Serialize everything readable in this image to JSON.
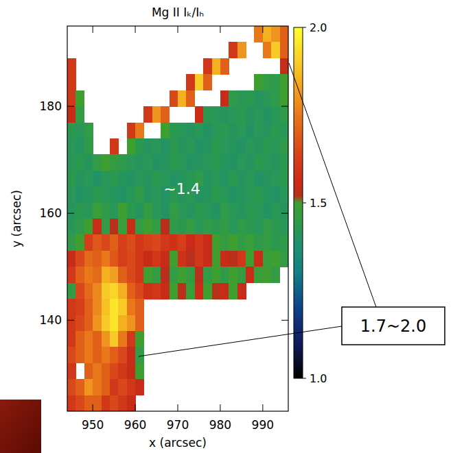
{
  "chart_data": {
    "type": "heatmap",
    "title": "Mg II Iₖ/Iₕ",
    "xlabel": "x (arcsec)",
    "ylabel": "y (arcsec)",
    "xlim": [
      944,
      996
    ],
    "ylim": [
      123,
      195
    ],
    "xticks": [
      950,
      960,
      970,
      980,
      990
    ],
    "yticks": [
      140,
      160,
      180
    ],
    "xbins": [
      944,
      946,
      948,
      950,
      952,
      954,
      956,
      958,
      960,
      962,
      964,
      966,
      968,
      970,
      972,
      974,
      976,
      978,
      980,
      982,
      984,
      986,
      988,
      990,
      992,
      994,
      996
    ],
    "ybins": [
      195,
      192,
      189,
      186,
      183,
      180,
      177,
      174,
      171,
      168,
      165,
      162,
      159,
      156,
      153,
      150,
      147,
      144,
      141,
      138,
      135,
      132,
      129,
      126,
      123
    ],
    "values": [
      [
        null,
        null,
        null,
        null,
        null,
        null,
        null,
        null,
        null,
        null,
        null,
        null,
        null,
        null,
        null,
        null,
        null,
        null,
        null,
        null,
        null,
        null,
        1.75,
        1.85,
        1.8,
        1.7
      ],
      [
        null,
        null,
        null,
        null,
        null,
        null,
        null,
        null,
        null,
        null,
        null,
        null,
        null,
        null,
        null,
        null,
        null,
        null,
        null,
        1.6,
        1.8,
        null,
        null,
        1.75,
        1.9,
        1.7
      ],
      [
        1.6,
        null,
        null,
        null,
        null,
        null,
        null,
        null,
        null,
        null,
        null,
        null,
        null,
        null,
        null,
        null,
        1.6,
        1.85,
        1.7,
        null,
        null,
        null,
        null,
        null,
        null,
        1.55
      ],
      [
        1.6,
        null,
        null,
        null,
        null,
        null,
        null,
        null,
        null,
        null,
        null,
        null,
        null,
        null,
        1.6,
        1.9,
        1.7,
        null,
        null,
        null,
        null,
        null,
        1.5,
        1.45,
        1.44,
        1.5
      ],
      [
        1.6,
        1.5,
        null,
        null,
        null,
        null,
        null,
        null,
        null,
        null,
        null,
        null,
        1.65,
        1.85,
        1.7,
        null,
        null,
        null,
        1.55,
        1.44,
        1.42,
        1.43,
        1.41,
        1.42,
        1.44,
        1.5
      ],
      [
        1.55,
        1.45,
        null,
        null,
        null,
        null,
        null,
        null,
        null,
        1.6,
        1.8,
        1.7,
        null,
        null,
        null,
        1.55,
        1.43,
        1.42,
        1.41,
        1.42,
        1.43,
        1.41,
        1.42,
        1.4,
        1.42,
        1.44
      ],
      [
        1.43,
        1.42,
        1.45,
        null,
        null,
        null,
        null,
        1.6,
        1.75,
        null,
        null,
        1.5,
        1.43,
        1.42,
        1.41,
        1.42,
        1.4,
        1.42,
        1.43,
        1.41,
        1.42,
        1.4,
        1.42,
        1.41,
        1.43,
        1.42
      ],
      [
        1.42,
        1.41,
        1.44,
        null,
        null,
        1.6,
        null,
        1.5,
        1.43,
        1.41,
        1.42,
        1.4,
        1.43,
        1.41,
        1.42,
        1.4,
        1.41,
        1.43,
        1.42,
        1.41,
        1.4,
        1.42,
        1.41,
        1.43,
        1.42,
        1.44
      ],
      [
        1.42,
        1.43,
        1.41,
        1.45,
        1.5,
        1.46,
        1.44,
        1.42,
        1.41,
        1.42,
        1.4,
        1.41,
        1.43,
        1.42,
        1.4,
        1.41,
        1.42,
        1.43,
        1.41,
        1.4,
        1.42,
        1.41,
        1.43,
        1.42,
        1.41,
        1.43
      ],
      [
        1.43,
        1.41,
        1.42,
        1.4,
        1.42,
        1.43,
        1.41,
        1.4,
        1.42,
        1.41,
        1.43,
        1.42,
        1.4,
        1.41,
        1.42,
        1.44,
        1.41,
        1.42,
        1.4,
        1.43,
        1.41,
        1.42,
        1.4,
        1.41,
        1.42,
        1.43
      ],
      [
        1.42,
        1.4,
        1.41,
        1.43,
        1.42,
        1.41,
        1.4,
        1.42,
        1.44,
        1.41,
        1.42,
        1.4,
        1.43,
        1.41,
        1.42,
        1.4,
        1.41,
        1.43,
        1.42,
        1.4,
        1.41,
        1.42,
        1.43,
        1.41,
        1.4,
        1.42
      ],
      [
        1.41,
        1.43,
        1.42,
        1.48,
        1.44,
        1.42,
        1.5,
        1.43,
        1.41,
        1.46,
        1.42,
        1.4,
        1.45,
        1.42,
        1.41,
        1.43,
        1.42,
        1.4,
        1.44,
        1.42,
        1.41,
        1.43,
        1.42,
        1.4,
        1.42,
        1.41
      ],
      [
        1.42,
        1.44,
        1.5,
        1.55,
        1.45,
        1.52,
        1.48,
        1.55,
        1.46,
        1.5,
        1.45,
        1.52,
        1.44,
        1.43,
        1.46,
        1.42,
        1.44,
        1.43,
        1.45,
        1.42,
        1.44,
        1.43,
        1.42,
        1.45,
        1.43,
        1.42
      ],
      [
        1.44,
        1.5,
        1.62,
        1.68,
        1.65,
        1.7,
        1.62,
        1.66,
        1.6,
        1.63,
        1.65,
        1.6,
        1.58,
        1.62,
        1.56,
        1.6,
        1.55,
        1.5,
        1.46,
        1.5,
        1.45,
        1.48,
        1.44,
        1.46,
        1.43,
        1.44
      ],
      [
        1.55,
        1.65,
        1.72,
        1.7,
        1.75,
        1.68,
        1.62,
        1.65,
        1.6,
        1.55,
        1.6,
        1.55,
        1.5,
        1.58,
        1.52,
        1.6,
        1.55,
        1.5,
        1.56,
        1.52,
        1.6,
        1.5,
        1.55,
        1.48,
        1.5,
        1.45
      ],
      [
        1.6,
        1.7,
        1.75,
        1.72,
        1.85,
        1.82,
        1.7,
        1.65,
        1.6,
        1.5,
        1.46,
        1.52,
        1.45,
        1.5,
        1.46,
        1.52,
        1.45,
        1.5,
        1.44,
        1.5,
        1.46,
        1.55,
        1.48,
        1.5,
        1.45,
        null
      ],
      [
        1.45,
        1.65,
        1.72,
        1.78,
        1.9,
        1.92,
        1.85,
        1.7,
        1.65,
        1.58,
        1.6,
        1.55,
        1.5,
        1.52,
        1.48,
        1.55,
        1.5,
        1.52,
        1.55,
        1.5,
        1.55,
        null,
        null,
        null,
        null,
        null
      ],
      [
        1.6,
        1.62,
        1.7,
        1.78,
        1.88,
        1.95,
        1.9,
        1.75,
        1.7,
        null,
        null,
        null,
        null,
        null,
        null,
        null,
        null,
        null,
        null,
        null,
        null,
        null,
        null,
        null,
        null,
        null
      ],
      [
        1.6,
        1.65,
        1.7,
        1.8,
        1.9,
        1.95,
        1.85,
        1.8,
        1.7,
        null,
        null,
        null,
        null,
        null,
        null,
        null,
        null,
        null,
        null,
        null,
        null,
        null,
        null,
        null,
        null,
        null
      ],
      [
        1.6,
        1.7,
        1.75,
        1.7,
        1.8,
        1.9,
        1.75,
        1.6,
        1.5,
        null,
        null,
        null,
        null,
        null,
        null,
        null,
        null,
        null,
        null,
        null,
        null,
        null,
        null,
        null,
        null,
        null
      ],
      [
        1.65,
        1.7,
        1.75,
        1.7,
        1.75,
        1.7,
        1.65,
        1.55,
        1.45,
        null,
        null,
        null,
        null,
        null,
        null,
        null,
        null,
        null,
        null,
        null,
        null,
        null,
        null,
        null,
        null,
        null
      ],
      [
        1.6,
        null,
        1.7,
        1.75,
        1.7,
        1.65,
        1.6,
        1.55,
        1.5,
        null,
        null,
        null,
        null,
        null,
        null,
        null,
        null,
        null,
        null,
        null,
        null,
        null,
        null,
        null,
        null,
        null
      ],
      [
        1.65,
        1.7,
        1.8,
        1.75,
        1.7,
        1.6,
        1.65,
        1.6,
        1.55,
        null,
        null,
        null,
        null,
        null,
        null,
        null,
        null,
        null,
        null,
        null,
        null,
        null,
        null,
        null,
        null,
        null
      ],
      [
        1.6,
        1.65,
        1.7,
        1.7,
        1.6,
        1.65,
        1.6,
        1.55,
        null,
        null,
        null,
        null,
        null,
        null,
        null,
        null,
        null,
        null,
        null,
        null,
        null,
        null,
        null,
        null,
        null,
        null
      ]
    ],
    "zlim": [
      1,
      2
    ],
    "zticks": [
      {
        "value": 1,
        "label": "1.0"
      },
      {
        "value": 1.5,
        "label": "1.5"
      },
      {
        "value": 2,
        "label": "2.0"
      }
    ],
    "annotations": [
      "~1.4",
      "1.7~2.0"
    ]
  }
}
